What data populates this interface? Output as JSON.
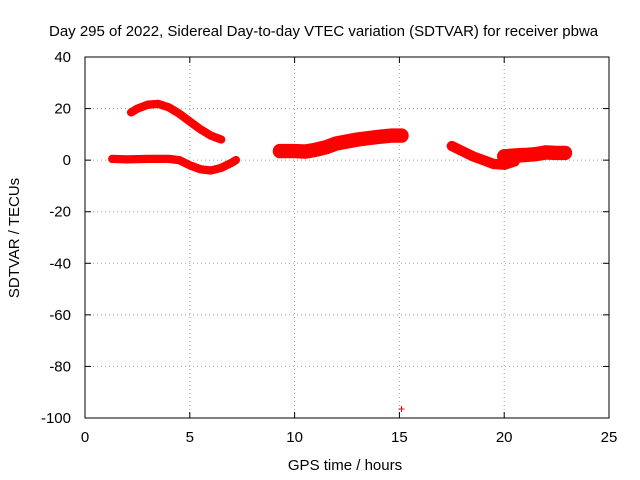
{
  "chart_data": {
    "type": "scatter",
    "title": "Day 295 of 2022, Sidereal Day-to-day VTEC variation (SDTVAR) for receiver pbwa",
    "xlabel": "GPS time / hours",
    "ylabel": "SDTVAR / TECUs",
    "xlim": [
      0,
      25
    ],
    "ylim": [
      -100,
      40
    ],
    "xticks": [
      "0",
      "5",
      "10",
      "15",
      "20",
      "25"
    ],
    "yticks": [
      "40",
      "20",
      "0",
      "-20",
      "-40",
      "-60",
      "-80",
      "-100"
    ],
    "grid": true,
    "color": "#ff0000",
    "series": [
      {
        "name": "arc-1",
        "thickness": 1.6,
        "x": [
          1.3,
          2.0,
          3.0,
          4.0,
          4.5,
          5.0,
          5.5,
          6.0,
          6.5,
          7.0,
          7.2
        ],
        "y": [
          0.5,
          0.3,
          0.5,
          0.5,
          0,
          -2,
          -3.5,
          -4,
          -3,
          -1,
          0
        ]
      },
      {
        "name": "arc-2",
        "thickness": 1.6,
        "x": [
          2.2,
          2.5,
          3.0,
          3.5,
          4.0,
          4.5,
          5.0,
          5.5,
          6.0,
          6.5
        ],
        "y": [
          18.5,
          20,
          21.5,
          21.8,
          20.5,
          18,
          15,
          12,
          9.5,
          8
        ]
      },
      {
        "name": "arc-3",
        "thickness": 2.8,
        "x": [
          9.3,
          10.0,
          10.5,
          11.0,
          11.5,
          12.0,
          13.0,
          14.0,
          14.6,
          15.1
        ],
        "y": [
          3.5,
          3.5,
          3.3,
          4,
          5,
          6.5,
          8,
          9,
          9.5,
          9.5
        ]
      },
      {
        "name": "arc-4",
        "thickness": 2.0,
        "x": [
          17.5,
          18.0,
          18.5,
          19.0,
          19.5,
          20.0,
          20.5
        ],
        "y": [
          5.5,
          3.5,
          1.5,
          0,
          -1.5,
          -1.8,
          -0.5
        ]
      },
      {
        "name": "arc-5",
        "thickness": 2.8,
        "x": [
          20.0,
          20.5,
          21.0,
          21.5,
          22.0,
          22.5,
          22.9
        ],
        "y": [
          1.5,
          1.8,
          2,
          2.3,
          3,
          2.8,
          2.8
        ]
      }
    ],
    "outliers": [
      {
        "x": 15.1,
        "y": -96.5
      }
    ]
  }
}
